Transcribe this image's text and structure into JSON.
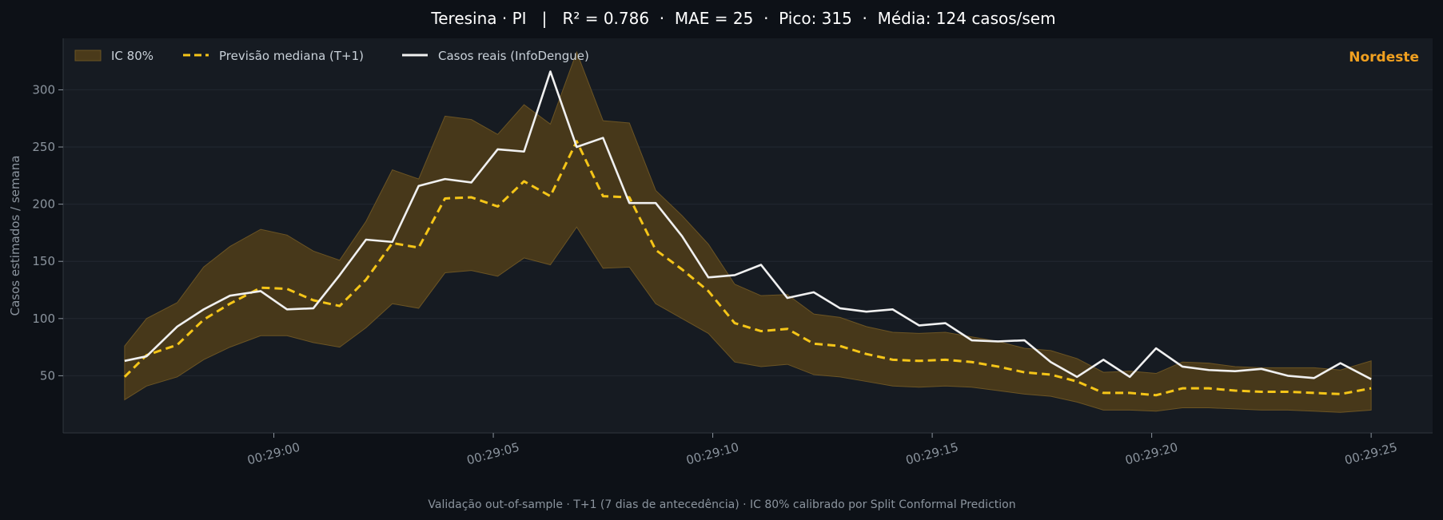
{
  "header": {
    "title": "Teresina · PI   |   R² = 0.786  ·  MAE = 25  ·  Pico: 315  ·  Média: 124 casos/sem"
  },
  "footer": {
    "caption": "Validação out-of-sample · T+1 (7 dias de antecedência) · IC 80% calibrado por Split Conformal Prediction"
  },
  "region_label": "Nordeste",
  "colors": {
    "page_bg": "#0d1117",
    "plot_bg": "#161b22",
    "band": "#4a3a1a",
    "band_edge": "#6b5424",
    "forecast": "#f5c518",
    "actual": "#f0f0f0",
    "region": "#f0a020",
    "text": "#ffffff",
    "muted": "#8b949e"
  },
  "chart_data": {
    "type": "line",
    "title": "Teresina · PI   |   R² = 0.786  ·  MAE = 25  ·  Pico: 315  ·  Média: 124 casos/sem",
    "ylabel": "Casos estimados / semana",
    "xlabel": "",
    "x_ticks": [
      {
        "value": 0,
        "label": "00:29:00"
      },
      {
        "value": 5,
        "label": "00:29:05"
      },
      {
        "value": 10,
        "label": "00:29:10"
      },
      {
        "value": 15,
        "label": "00:29:15"
      },
      {
        "value": 20,
        "label": "00:29:20"
      },
      {
        "value": 25,
        "label": "00:29:25"
      }
    ],
    "xlim": [
      -4.8,
      26.4
    ],
    "ylim": [
      0,
      345
    ],
    "y_ticks": [
      50,
      100,
      150,
      200,
      250,
      300
    ],
    "grid": true,
    "legend_position": "top-left",
    "legend": [
      "IC 80%",
      "Previsão mediana (T+1)",
      "Casos reais (InfoDengue)"
    ],
    "x": [
      -3.4,
      -2.9,
      -2.2,
      -1.6,
      -1.0,
      -0.3,
      0.3,
      0.9,
      1.5,
      2.1,
      2.7,
      3.3,
      3.9,
      4.5,
      5.1,
      5.7,
      6.3,
      6.9,
      7.5,
      8.1,
      8.7,
      9.3,
      9.9,
      10.5,
      11.1,
      11.7,
      12.3,
      12.9,
      13.5,
      14.1,
      14.7,
      15.3,
      15.9,
      16.5,
      17.1,
      17.7,
      18.3,
      18.9,
      19.5,
      20.1,
      20.7,
      21.3,
      21.9,
      22.5,
      23.1,
      23.7,
      24.3,
      25.0
    ],
    "series": [
      {
        "name": "Previsão mediana (T+1)",
        "style": "dashed",
        "values": [
          49,
          68,
          77,
          99,
          113,
          127,
          126,
          116,
          111,
          134,
          166,
          162,
          205,
          206,
          198,
          220,
          207,
          255,
          207,
          206,
          160,
          143,
          124,
          96,
          89,
          91,
          78,
          76,
          69,
          64,
          63,
          64,
          62,
          58,
          53,
          51,
          45,
          35,
          35,
          33,
          39,
          39,
          37,
          36,
          36,
          35,
          34,
          39
        ]
      },
      {
        "name": "Casos reais (InfoDengue)",
        "style": "solid",
        "values": [
          63,
          67,
          93,
          108,
          120,
          124,
          108,
          109,
          138,
          169,
          167,
          216,
          222,
          219,
          248,
          246,
          316,
          250,
          258,
          201,
          201,
          172,
          136,
          138,
          147,
          118,
          123,
          109,
          106,
          108,
          94,
          96,
          81,
          80,
          81,
          62,
          49,
          64,
          49,
          74,
          58,
          55,
          54,
          56,
          50,
          48,
          61,
          47
        ]
      },
      {
        "name": "IC 80% upper",
        "style": "band-upper",
        "values": [
          76,
          100,
          114,
          145,
          163,
          178,
          173,
          159,
          151,
          185,
          230,
          222,
          277,
          274,
          261,
          287,
          270,
          333,
          273,
          271,
          212,
          190,
          165,
          130,
          120,
          121,
          104,
          101,
          93,
          88,
          87,
          88,
          84,
          80,
          74,
          72,
          65,
          53,
          54,
          52,
          62,
          61,
          58,
          57,
          57,
          57,
          55,
          63
        ]
      },
      {
        "name": "IC 80% lower",
        "style": "band-lower",
        "values": [
          29,
          41,
          49,
          64,
          75,
          85,
          85,
          79,
          75,
          92,
          113,
          109,
          140,
          142,
          137,
          153,
          147,
          180,
          144,
          145,
          113,
          100,
          87,
          62,
          58,
          60,
          51,
          49,
          45,
          41,
          40,
          41,
          40,
          37,
          34,
          32,
          27,
          20,
          20,
          19,
          22,
          22,
          21,
          20,
          20,
          19,
          18,
          20
        ]
      }
    ]
  }
}
